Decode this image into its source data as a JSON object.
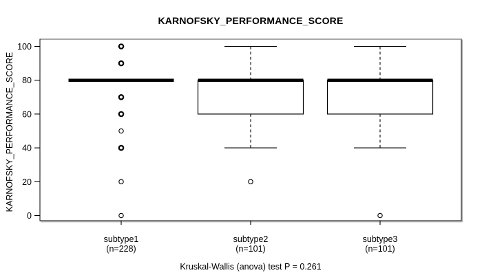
{
  "chart_data": {
    "type": "boxplot",
    "title": "KARNOFSKY_PERFORMANCE_SCORE",
    "ylabel": "KARNOFSKY_PERFORMANCE_SCORE",
    "xlabel": "",
    "footer": "Kruskal-Wallis (anova) test P = 0.261",
    "ylim": [
      0,
      100
    ],
    "yticks": [
      0,
      20,
      40,
      60,
      80,
      100
    ],
    "grid": false,
    "legend": "none",
    "groups": [
      {
        "label": "subtype1",
        "sublabel": "(n=228)",
        "n": 228,
        "median": 80,
        "q1": 80,
        "q3": 80,
        "whisker_low": null,
        "whisker_high": null,
        "outliers": [
          100,
          90,
          70,
          60,
          50,
          40,
          20,
          0
        ],
        "outliers_heavy": [
          100,
          90,
          70,
          60,
          40
        ]
      },
      {
        "label": "subtype2",
        "sublabel": "(n=101)",
        "n": 101,
        "median": 80,
        "q1": 60,
        "q3": 80,
        "whisker_low": 40,
        "whisker_high": 100,
        "outliers": [
          20
        ],
        "outliers_heavy": []
      },
      {
        "label": "subtype3",
        "sublabel": "(n=101)",
        "n": 101,
        "median": 80,
        "q1": 60,
        "q3": 80,
        "whisker_low": 40,
        "whisker_high": 100,
        "outliers": [
          0
        ],
        "outliers_heavy": []
      }
    ],
    "colors": {
      "line": "#000000",
      "box_fill": "#ffffff",
      "background": "#ffffff",
      "frame_top": "#8a8a8a",
      "frame_shadow": "#9a9a9a"
    }
  }
}
